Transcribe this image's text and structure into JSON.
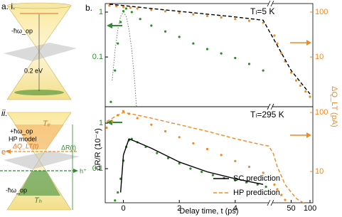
{
  "figure": {
    "panel_label": "b.",
    "ylabel": "ΔR/R (10⁻⁴)",
    "y2label": "ΔQ_LT (pA)",
    "xlabel": "Delay time, t (ps)"
  },
  "diagram": {
    "label_i": "a. i.",
    "label_ii": "ii.",
    "top_phonon": "-ħω_op",
    "gap": "0.2 eV",
    "plus_phonon": "+ħω_op",
    "model": "HP model",
    "electron": "e⁻",
    "current": "ΔQ_LT(t)",
    "reflect": "ΔR(t)",
    "hole": "h⁺",
    "te": "Tₑ",
    "th": "Tₕ",
    "bottom_phonon": "-ħω_op"
  },
  "chart_data": [
    {
      "type": "line",
      "annotation": "Tₗ=5 K",
      "yscale": "log",
      "y2scale": "log",
      "xlim": [
        -0.65,
        111
      ],
      "x_break": [
        5.2,
        25
      ],
      "ylim": [
        0.0078,
        1.55
      ],
      "yticks": [
        1,
        0.1
      ],
      "y2lim": [
        0.78,
        155
      ],
      "y2ticks": [
        100,
        10
      ],
      "series": [
        {
          "style": "dots",
          "color": "#2e8b2e",
          "axis": "y",
          "x": [
            -0.45,
            -0.3,
            -0.2,
            -0.1,
            0,
            0.1,
            0.3,
            0.6,
            1,
            1.5,
            2,
            2.5,
            3,
            3.5,
            4,
            4.5,
            5
          ],
          "values": [
            0.01,
            0.05,
            0.2,
            0.6,
            1.05,
            1.2,
            1.0,
            0.7,
            0.5,
            0.37,
            0.28,
            0.2,
            0.15,
            0.12,
            0.095,
            0.07,
            0.05
          ]
        },
        {
          "style": "dotted",
          "color": "#777777",
          "axis": "y",
          "x": [
            -0.4,
            -0.3,
            -0.2,
            -0.1,
            0,
            0.1,
            0.2,
            0.3,
            0.4,
            0.5
          ],
          "values": [
            0.03,
            0.14,
            0.41,
            0.8,
            1,
            0.8,
            0.41,
            0.14,
            0.03,
            0.004
          ]
        },
        {
          "style": "dots",
          "color": "#f08a24",
          "axis": "y2",
          "x": [
            -0.5,
            -0.25,
            0,
            0.25,
            0.5,
            1,
            1.5,
            2,
            2.5,
            3,
            3.5,
            4,
            4.5,
            5,
            27,
            30,
            35,
            40,
            50,
            60,
            70,
            85,
            100
          ],
          "values": [
            140,
            135,
            130,
            125,
            120,
            112,
            104,
            96,
            89,
            82,
            76,
            70,
            64,
            58,
            30,
            20,
            12,
            8,
            4.5,
            3,
            2.3,
            1.7,
            1.3
          ]
        },
        {
          "style": "dashed",
          "color": "#000000",
          "axis": "y2",
          "x": [
            -0.5,
            0,
            1,
            2,
            3,
            4,
            5,
            30,
            50,
            100
          ],
          "values": [
            150,
            140,
            120,
            104,
            90,
            78,
            66,
            18,
            5,
            1.5
          ]
        }
      ]
    },
    {
      "type": "line",
      "annotation": "Tₗ=295 K",
      "yscale": "log",
      "y2scale": "log",
      "xlim": [
        -0.65,
        111
      ],
      "x_break": [
        5.2,
        25
      ],
      "xticks": [
        0,
        2,
        4,
        50,
        100
      ],
      "ylim": [
        0.0178,
        2.29
      ],
      "yticks": [
        1,
        0.1
      ],
      "y2lim": [
        2.95,
        125
      ],
      "y2ticks": [
        100,
        10
      ],
      "series": [
        {
          "style": "dots",
          "color": "#2e8b2e",
          "axis": "y",
          "x": [
            -0.3,
            -0.2,
            -0.1,
            0,
            0.1,
            0.2,
            0.3,
            0.5,
            0.8,
            1.2,
            1.6,
            2,
            2.4,
            2.8,
            3.2,
            3.6,
            4,
            4.4,
            4.8,
            5.1
          ],
          "values": [
            0.02,
            0.03,
            0.06,
            0.15,
            0.3,
            0.42,
            0.45,
            0.38,
            0.3,
            0.22,
            0.17,
            0.13,
            0.1,
            0.085,
            0.072,
            0.062,
            0.055,
            0.05,
            0.045,
            0.04
          ]
        },
        {
          "style": "dots",
          "color": "#f08a24",
          "axis": "y2",
          "x": [
            -0.6,
            -0.4,
            -0.2,
            0,
            0.2,
            0.5,
            1,
            1.5,
            2,
            2.5,
            3,
            3.5,
            4,
            4.5,
            5,
            27,
            30,
            35,
            40
          ],
          "values": [
            55,
            70,
            90,
            105,
            95,
            80,
            62,
            48,
            38,
            30,
            24,
            19,
            15,
            12,
            9.5,
            6,
            5,
            4,
            3.3
          ]
        },
        {
          "name": "SC prediction",
          "style": "solid",
          "color": "#000000",
          "axis": "y",
          "x": [
            -0.1,
            0,
            0.2,
            0.5,
            1,
            2,
            3,
            4,
            5
          ],
          "values": [
            0.03,
            0.2,
            0.45,
            0.38,
            0.28,
            0.14,
            0.085,
            0.06,
            0.045
          ]
        },
        {
          "name": "HP prediction",
          "style": "dashed",
          "color": "#f08a24",
          "axis": "y2",
          "x": [
            -0.6,
            -0.3,
            0,
            0.5,
            1,
            2,
            3,
            4,
            5,
            5.2,
            26,
            30,
            40,
            60,
            100
          ],
          "values": [
            70,
            85,
            100,
            90,
            80,
            62,
            48,
            36,
            28,
            27,
            20,
            12,
            6,
            3.5,
            2.5
          ]
        }
      ]
    }
  ]
}
